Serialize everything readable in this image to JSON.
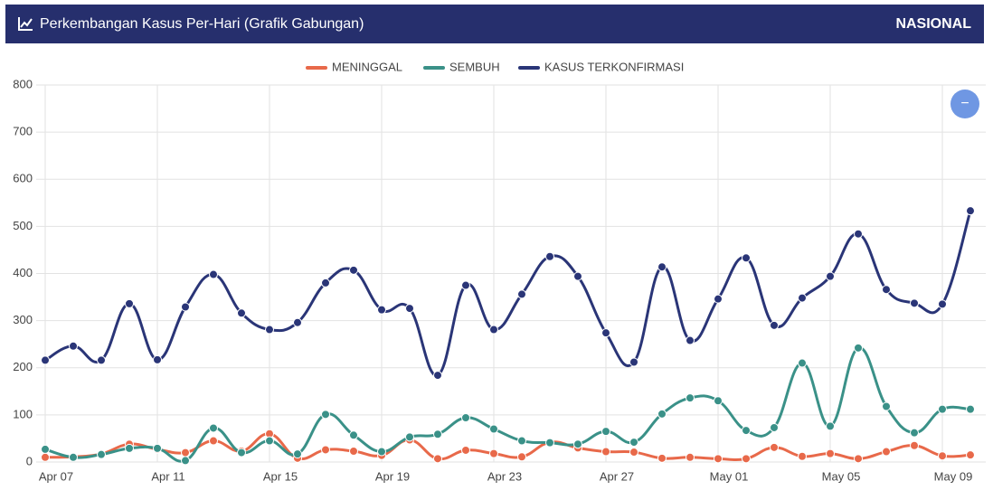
{
  "header": {
    "title": "Perkembangan Kasus Per-Hari (Grafik Gabungan)",
    "region": "NASIONAL"
  },
  "zoom_button": "−",
  "chart_data": {
    "type": "line",
    "categories": [
      "Apr 07",
      null,
      null,
      null,
      "Apr 11",
      null,
      null,
      null,
      "Apr 15",
      null,
      null,
      null,
      "Apr 19",
      null,
      null,
      null,
      "Apr 23",
      null,
      null,
      null,
      "Apr 27",
      null,
      null,
      null,
      "May 01",
      null,
      null,
      null,
      "May 05",
      null,
      null,
      null,
      "May 09",
      null
    ],
    "series": [
      {
        "name": "MENINGGAL",
        "color": "#e8694a",
        "values": [
          10,
          11,
          17,
          38,
          27,
          20,
          45,
          23,
          60,
          8,
          26,
          23,
          14,
          47,
          7,
          25,
          18,
          11,
          42,
          30,
          22,
          21,
          8,
          10,
          7,
          7,
          31,
          12,
          18,
          7,
          22,
          35,
          13,
          15
        ]
      },
      {
        "name": "SEMBUH",
        "color": "#3a9188",
        "values": [
          27,
          10,
          16,
          29,
          29,
          3,
          72,
          20,
          45,
          17,
          101,
          57,
          22,
          53,
          59,
          94,
          70,
          45,
          41,
          38,
          65,
          42,
          102,
          136,
          130,
          67,
          73,
          210,
          76,
          242,
          118,
          62,
          112,
          112
        ]
      },
      {
        "name": "KASUS TERKONFIRMASI",
        "color": "#2a3577",
        "values": [
          216,
          246,
          216,
          336,
          217,
          329,
          398,
          316,
          281,
          296,
          380,
          407,
          323,
          326,
          184,
          375,
          281,
          356,
          436,
          394,
          274,
          212,
          414,
          258,
          346,
          433,
          290,
          348,
          394,
          484,
          366,
          337,
          335,
          533
        ]
      }
    ],
    "ylim": [
      0,
      800
    ],
    "yticks": [
      0,
      100,
      200,
      300,
      400,
      500,
      600,
      700,
      800
    ],
    "grid": true,
    "legend": "top"
  }
}
